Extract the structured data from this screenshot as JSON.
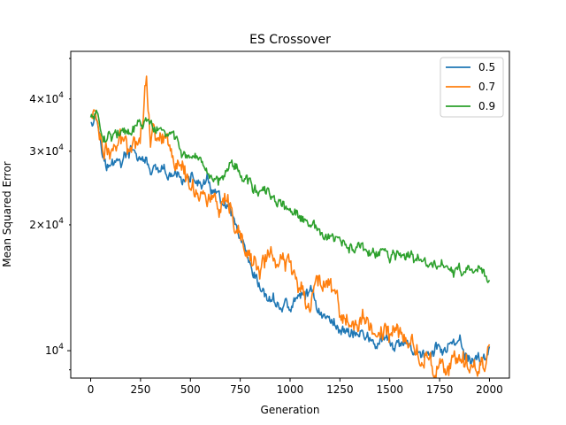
{
  "chart_data": {
    "type": "line",
    "title": "ES Crossover",
    "xlabel": "Generation",
    "ylabel": "Mean Squared Error",
    "xlim": [
      -100,
      2100
    ],
    "ylim": [
      8600,
      52000
    ],
    "yscale": "log",
    "grid": false,
    "legend_position": "top-right",
    "x_ticks": [
      0,
      250,
      500,
      750,
      1000,
      1250,
      1500,
      1750,
      2000
    ],
    "x_tick_labels": [
      "0",
      "250",
      "500",
      "750",
      "1000",
      "1250",
      "1500",
      "1750",
      "2000"
    ],
    "y_major_ticks": [
      10000
    ],
    "y_major_tick_labels": [
      "10^4"
    ],
    "y_minor_ticks": [
      20000,
      30000,
      40000
    ],
    "y_minor_tick_labels": [
      "2×10^4",
      "3×10^4",
      "4×10^4"
    ],
    "y_minor_unlabeled_ticks": [
      9000,
      50000
    ],
    "series": [
      {
        "name": "0.5",
        "color": "#1f77b4",
        "x": [
          0,
          25,
          50,
          75,
          100,
          150,
          200,
          250,
          300,
          350,
          400,
          450,
          500,
          550,
          600,
          650,
          700,
          750,
          800,
          850,
          900,
          950,
          1000,
          1050,
          1100,
          1150,
          1200,
          1250,
          1300,
          1350,
          1400,
          1450,
          1500,
          1550,
          1600,
          1650,
          1700,
          1750,
          1800,
          1850,
          1900,
          1950,
          2000
        ],
        "y": [
          36000,
          37000,
          33000,
          28000,
          27500,
          28500,
          29500,
          29000,
          27000,
          26000,
          25500,
          26500,
          25500,
          25000,
          24500,
          22500,
          21000,
          18000,
          15000,
          13800,
          13200,
          12800,
          12700,
          13300,
          14000,
          12500,
          11700,
          11400,
          11200,
          11000,
          10600,
          10400,
          10300,
          10200,
          10100,
          10000,
          9700,
          10100,
          10300,
          10000,
          9600,
          9500,
          9900
        ],
        "noise": 0.035
      },
      {
        "name": "0.7",
        "color": "#ff7f0e",
        "x": [
          0,
          25,
          50,
          75,
          100,
          150,
          200,
          250,
          280,
          300,
          350,
          400,
          450,
          500,
          550,
          600,
          650,
          700,
          750,
          800,
          850,
          900,
          950,
          1000,
          1050,
          1100,
          1150,
          1200,
          1250,
          1300,
          1350,
          1400,
          1450,
          1500,
          1550,
          1600,
          1650,
          1700,
          1750,
          1800,
          1850,
          1900,
          1950,
          2000
        ],
        "y": [
          36000,
          37500,
          33000,
          30500,
          29500,
          31000,
          32000,
          34000,
          46000,
          33000,
          33500,
          31500,
          27000,
          25000,
          24500,
          23000,
          21500,
          20500,
          18000,
          16500,
          15500,
          17500,
          15500,
          16000,
          14500,
          13500,
          14500,
          15500,
          12500,
          11600,
          11400,
          11500,
          11300,
          10800,
          11000,
          10500,
          9800,
          9500,
          9300,
          9100,
          9000,
          9100,
          9200,
          10200
        ],
        "noise": 0.055
      },
      {
        "name": "0.9",
        "color": "#2ca02c",
        "x": [
          0,
          25,
          50,
          75,
          100,
          150,
          200,
          250,
          300,
          350,
          400,
          450,
          500,
          550,
          600,
          650,
          700,
          750,
          800,
          850,
          900,
          950,
          1000,
          1050,
          1100,
          1150,
          1200,
          1250,
          1300,
          1350,
          1400,
          1450,
          1500,
          1550,
          1600,
          1650,
          1700,
          1750,
          1800,
          1850,
          1900,
          1950,
          2000
        ],
        "y": [
          36000,
          37500,
          34000,
          33000,
          33500,
          33000,
          32500,
          35000,
          34500,
          33000,
          32500,
          31000,
          28000,
          26500,
          26000,
          25500,
          29500,
          26500,
          25000,
          24000,
          23000,
          22500,
          21500,
          20500,
          19800,
          19000,
          18500,
          18000,
          17600,
          17300,
          17100,
          16900,
          16800,
          17000,
          16500,
          16300,
          16100,
          15900,
          15700,
          15500,
          15300,
          15200,
          15000
        ],
        "noise": 0.03
      }
    ],
    "legend": [
      "0.5",
      "0.7",
      "0.9"
    ]
  }
}
